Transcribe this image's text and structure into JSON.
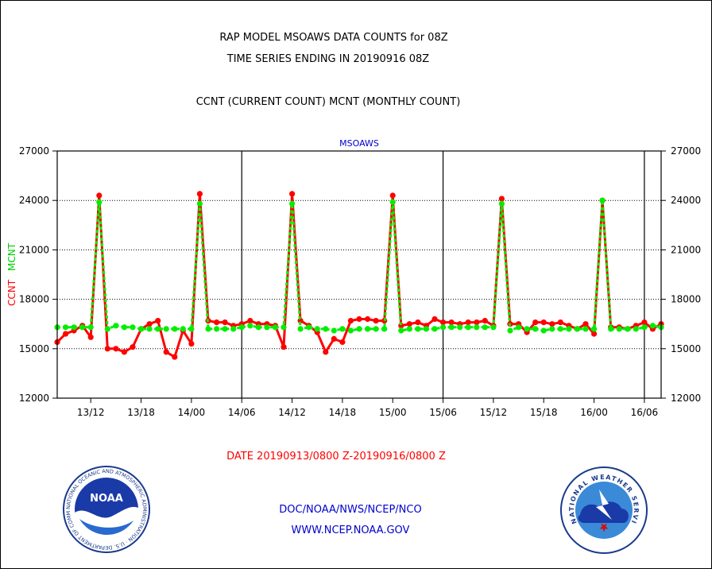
{
  "header": {
    "title_line1": "RAP MODEL MSOAWS DATA COUNTS for 08Z",
    "title_line2": "TIME SERIES ENDING IN 20190916 08Z",
    "subtitle": "CCNT (CURRENT COUNT) MCNT (MONTHLY COUNT)"
  },
  "footer": {
    "date_range": "DATE 20190913/0800 Z-20190916/0800 Z",
    "org_line": "DOC/NOAA/NWS/NCEP/NCO",
    "url_line": "WWW.NCEP.NOAA.GOV"
  },
  "logos": {
    "noaa_text": "NOAA",
    "noaa_ring": "NATIONAL OCEANIC AND ATMOSPHERIC ADMINISTRATION · U.S. DEPARTMENT OF COMMERCE",
    "nws_ring": "NATIONAL WEATHER SERVICE"
  },
  "colors": {
    "ccnt": "#ff0000",
    "mcnt": "#00ee00",
    "text": "#000000",
    "plot_title": "#0000cc",
    "footer_blue": "#0000cc",
    "footer_red": "#ff0000"
  },
  "chart_data": {
    "type": "line",
    "title": "MSOAWS",
    "ylabel_series": [
      "CCNT",
      "MCNT"
    ],
    "ylim": [
      12000,
      27000
    ],
    "yticks": [
      12000,
      15000,
      18000,
      21000,
      24000,
      27000
    ],
    "ytick_labels": [
      "12000",
      "15000",
      "18000",
      "21000",
      "24000",
      "27000"
    ],
    "xlim": [
      0,
      72
    ],
    "x_unit": "hours after 20190913/0800 Z",
    "xticks": [
      4,
      10,
      16,
      22,
      28,
      34,
      40,
      46,
      52,
      58,
      64,
      70
    ],
    "xtick_labels": [
      "13/12",
      "13/18",
      "14/00",
      "14/06",
      "14/12",
      "14/18",
      "15/00",
      "15/06",
      "15/12",
      "15/18",
      "16/00",
      "16/06"
    ],
    "day_boundaries": [
      22,
      46,
      70
    ],
    "grid_y": true,
    "series": [
      {
        "name": "CCNT",
        "values": [
          15400,
          15900,
          16100,
          16400,
          15700,
          24300,
          15000,
          15000,
          14800,
          15100,
          16200,
          16500,
          16700,
          14800,
          14500,
          16100,
          15300,
          24400,
          16700,
          16600,
          16600,
          16400,
          16500,
          16700,
          16500,
          16500,
          16400,
          15100,
          24400,
          16700,
          16400,
          16000,
          14800,
          15600,
          15400,
          16700,
          16800,
          16800,
          16700,
          16700,
          24300,
          16400,
          16500,
          16600,
          16400,
          16800,
          16600,
          16600,
          16500,
          16600,
          16600,
          16700,
          16400,
          24100,
          16500,
          16500,
          16000,
          16600,
          16600,
          16500,
          16600,
          16400,
          16200,
          16500,
          15900,
          24000,
          16300,
          16300,
          16200,
          16400,
          16600,
          16200,
          16500
        ]
      },
      {
        "name": "MCNT",
        "values": [
          16300,
          16300,
          16300,
          16300,
          16300,
          23900,
          16200,
          16400,
          16300,
          16300,
          16200,
          16200,
          16200,
          16200,
          16200,
          16200,
          16200,
          23800,
          16200,
          16200,
          16200,
          16200,
          16300,
          16400,
          16300,
          16300,
          16300,
          16300,
          23800,
          16200,
          16300,
          16200,
          16200,
          16100,
          16200,
          16100,
          16200,
          16200,
          16200,
          16200,
          23900,
          16100,
          16200,
          16200,
          16200,
          16200,
          16300,
          16300,
          16300,
          16300,
          16300,
          16300,
          16300,
          23800,
          16100,
          16300,
          16200,
          16200,
          16100,
          16200,
          16200,
          16200,
          16200,
          16200,
          16200,
          24000,
          16200,
          16200,
          16200,
          16200,
          16300,
          16400,
          16300
        ]
      }
    ]
  }
}
